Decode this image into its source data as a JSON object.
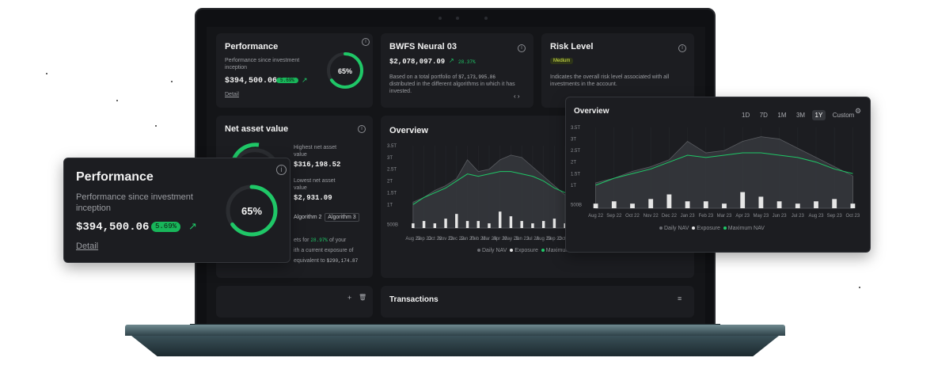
{
  "colors": {
    "accent": "#1fc767",
    "card": "#1c1d21",
    "background": "#141518"
  },
  "perf": {
    "title": "Performance",
    "subtitle": "Performance since investment inception",
    "value": "$394,500.06",
    "badge": "5.69%",
    "gauge": "65%",
    "gauge_fraction": 0.65,
    "link": "Detail"
  },
  "bwfs": {
    "title": "BWFS Neural 03",
    "value": "$2,078,097.09",
    "change": "28.37%",
    "desc_before": "Based on a total portfolio of",
    "desc_amount": "$7,173,995.86",
    "desc_after": "distributed in the different algorithms in which it has invested."
  },
  "risk": {
    "title": "Risk Level",
    "badge": "Medium",
    "desc": "Indicates the overall risk level associated with all investments in the account."
  },
  "nav": {
    "title": "Net asset value",
    "highest_label": "Highest net asset value",
    "highest_value": "$316,198.52",
    "lowest_label": "Lowest net asset value",
    "lowest_value": "$2,931.09",
    "tab1": "Algorithm 2",
    "tab2": "Algorithm 3",
    "text_a": "ets for",
    "text_pct": "28.97%",
    "text_b": "of your",
    "text_c": "ith a current exposure of",
    "text_d": "equivalent to",
    "text_amount": "$290,174.87"
  },
  "transactions": {
    "title": "Transactions"
  },
  "overview": {
    "title": "Overview",
    "ranges": [
      "1D",
      "7D",
      "1M",
      "3M",
      "1Y",
      "Custom"
    ],
    "active_range": "1Y",
    "legend": [
      "Daily NAV",
      "Exposure",
      "Maximum NAV"
    ]
  },
  "chart_data": {
    "type": "area",
    "categories": [
      "Aug 22",
      "Sep 22",
      "Oct 22",
      "Nov 22",
      "Dec 22",
      "Jan 23",
      "Feb 23",
      "Mar 23",
      "Apr 23",
      "May 23",
      "Jun 23",
      "Jul 23",
      "Aug 23",
      "Sep 23",
      "Oct 23"
    ],
    "y_ticks": [
      "500B",
      "1T",
      "1.5T",
      "2T",
      "2.5T",
      "3T",
      "3.5T"
    ],
    "ylim": [
      0,
      3.5
    ],
    "series": [
      {
        "name": "Daily NAV",
        "values": [
          1.1,
          1.3,
          1.6,
          1.8,
          2.1,
          2.9,
          2.4,
          2.5,
          2.9,
          3.1,
          3.0,
          2.6,
          2.2,
          1.8,
          1.4
        ]
      },
      {
        "name": "Maximum NAV",
        "values": [
          1.0,
          1.3,
          1.5,
          1.7,
          2.0,
          2.3,
          2.2,
          2.3,
          2.4,
          2.4,
          2.3,
          2.2,
          2.0,
          1.7,
          1.5
        ]
      },
      {
        "name": "Exposure",
        "values": [
          0.2,
          0.3,
          0.2,
          0.4,
          0.6,
          0.3,
          0.3,
          0.2,
          0.7,
          0.5,
          0.3,
          0.2,
          0.3,
          0.4,
          0.2
        ]
      }
    ]
  }
}
